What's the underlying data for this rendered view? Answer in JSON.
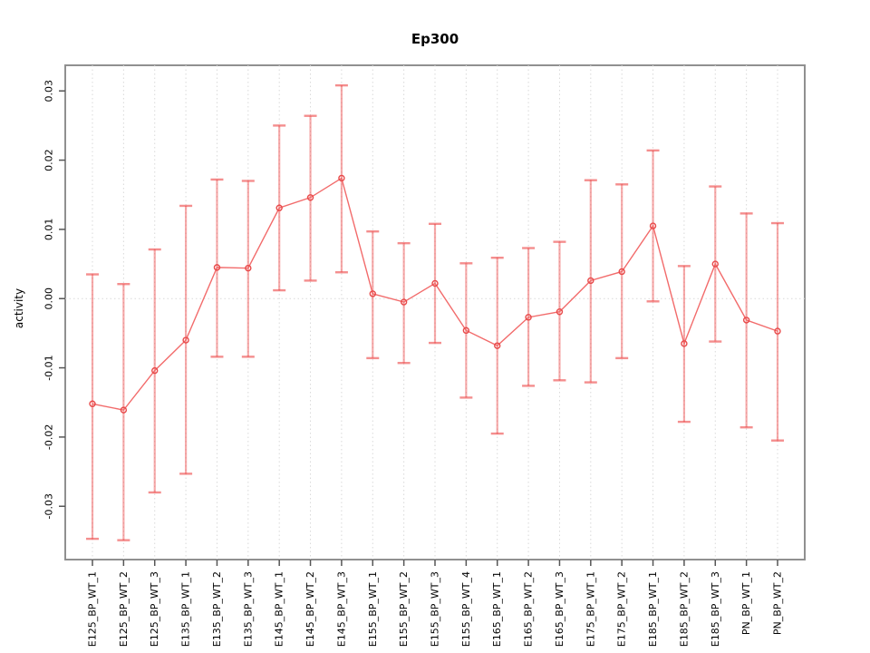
{
  "chart_data": {
    "type": "line",
    "title": "Ep300",
    "xlabel": "",
    "ylabel": "activity",
    "legend_position": "none",
    "grid": "vertical dotted gridline at each category; dotted horizontal line at y=0",
    "ylim": [
      -0.0377,
      0.0337
    ],
    "yticks": [
      "-0.03",
      "-0.02",
      "-0.01",
      "0.00",
      "0.01",
      "0.02",
      "0.03"
    ],
    "categories": [
      "E125_BP_WT_1",
      "E125_BP_WT_2",
      "E125_BP_WT_3",
      "E135_BP_WT_1",
      "E135_BP_WT_2",
      "E135_BP_WT_3",
      "E145_BP_WT_1",
      "E145_BP_WT_2",
      "E145_BP_WT_3",
      "E155_BP_WT_1",
      "E155_BP_WT_2",
      "E155_BP_WT_3",
      "E155_BP_WT_4",
      "E165_BP_WT_1",
      "E165_BP_WT_2",
      "E165_BP_WT_3",
      "E175_BP_WT_1",
      "E175_BP_WT_2",
      "E185_BP_WT_1",
      "E185_BP_WT_2",
      "E185_BP_WT_3",
      "PN_BP_WT_1",
      "PN_BP_WT_2"
    ],
    "series": [
      {
        "name": "activity",
        "marker": "open-circle",
        "values": [
          -0.0152,
          -0.0161,
          -0.0104,
          -0.006,
          0.0045,
          0.0044,
          0.0131,
          0.0146,
          0.0174,
          0.0007,
          -0.0005,
          0.0022,
          -0.0046,
          -0.0068,
          -0.0027,
          -0.0019,
          0.0026,
          0.0039,
          0.0105,
          -0.0065,
          0.005,
          -0.0031,
          -0.0047
        ],
        "error_upper": [
          0.0035,
          0.0021,
          0.0071,
          0.0134,
          0.0172,
          0.017,
          0.025,
          0.0264,
          0.0308,
          0.0097,
          0.008,
          0.0108,
          0.0051,
          0.0059,
          0.0073,
          0.0082,
          0.0171,
          0.0165,
          0.0214,
          0.0047,
          0.0162,
          0.0123,
          0.0109
        ],
        "error_lower": [
          -0.0347,
          -0.0349,
          -0.028,
          -0.0253,
          -0.0084,
          -0.0084,
          0.0012,
          0.0026,
          0.0038,
          -0.0086,
          -0.0093,
          -0.0064,
          -0.0143,
          -0.0195,
          -0.0126,
          -0.0118,
          -0.0121,
          -0.0086,
          -0.0004,
          -0.0178,
          -0.0062,
          -0.0186,
          -0.0205
        ]
      }
    ],
    "colors": {
      "point_stroke": "#e84a4a",
      "series_line": "#f26b6b",
      "error_bar": "rgba(237,66,66,0.45)",
      "error_cap": "rgba(237,66,66,0.60)",
      "gridline": "#d9d9d9",
      "plot_border": "#909090",
      "axis_tick": "#555555",
      "text": "#000000",
      "background": "#ffffff"
    }
  }
}
